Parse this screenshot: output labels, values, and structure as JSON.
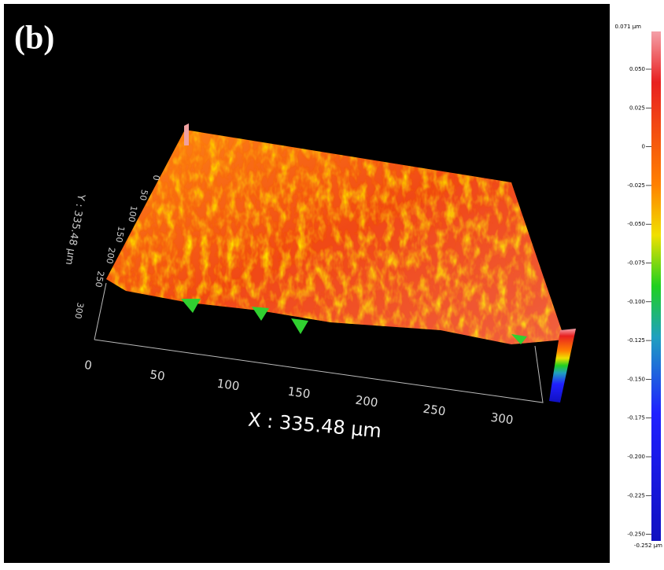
{
  "panel_label": "(b)",
  "x_axis": {
    "title": "X : 335.48 µm",
    "ticks": [
      "0",
      "50",
      "100",
      "150",
      "200",
      "250",
      "300"
    ]
  },
  "y_axis": {
    "title": "Y : 335.48 µm",
    "ticks": [
      "0",
      "50",
      "100",
      "150",
      "200",
      "250",
      "300"
    ]
  },
  "colorbar": {
    "max_label": "0.071 µm",
    "ticks": [
      "0.050",
      "0.025",
      "0",
      "-0.025",
      "-0.050",
      "-0.075",
      "-0.100",
      "-0.125",
      "-0.150",
      "-0.175",
      "-0.200",
      "-0.225",
      "-0.250"
    ],
    "min_label": "-0.252 µm"
  }
}
